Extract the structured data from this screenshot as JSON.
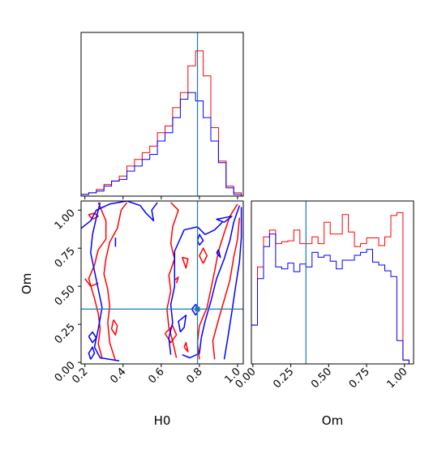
{
  "colors": {
    "red": "#ff0000",
    "blue": "#0000ff",
    "truth": "#1f77b4"
  },
  "labels": {
    "x_h0": "H0",
    "x_om": "Om",
    "y_om": "Om"
  },
  "chart_data": {
    "type": "corner",
    "parameters": [
      "H0",
      "Om"
    ],
    "truths": {
      "H0": 0.79,
      "Om": 0.35
    },
    "ranges": {
      "H0": [
        0.18,
        1.03
      ],
      "Om": [
        -0.01,
        1.06
      ]
    },
    "series": [
      {
        "color": "red"
      },
      {
        "color": "blue"
      }
    ],
    "hist_h0": {
      "x_ticks": [
        0.2,
        0.4,
        0.6,
        0.8,
        1.0
      ],
      "bin_edges": [
        0.18,
        0.22,
        0.26,
        0.3,
        0.34,
        0.38,
        0.42,
        0.46,
        0.5,
        0.54,
        0.58,
        0.62,
        0.66,
        0.7,
        0.74,
        0.78,
        0.82,
        0.86,
        0.9,
        0.94,
        0.98,
        1.02
      ],
      "red": [
        0.01,
        0.02,
        0.04,
        0.07,
        0.09,
        0.12,
        0.18,
        0.22,
        0.26,
        0.3,
        0.38,
        0.42,
        0.53,
        0.62,
        0.78,
        0.87,
        0.72,
        0.41,
        0.21,
        0.06,
        0.02
      ],
      "blue": [
        0.01,
        0.02,
        0.03,
        0.06,
        0.09,
        0.1,
        0.15,
        0.18,
        0.22,
        0.25,
        0.33,
        0.38,
        0.47,
        0.58,
        0.62,
        0.57,
        0.47,
        0.33,
        0.2,
        0.05,
        0.01
      ]
    },
    "hist_om": {
      "x_ticks": [
        0.0,
        0.25,
        0.5,
        0.75,
        1.0
      ],
      "x_tick_labels": [
        "0.00",
        "0.25",
        "0.50",
        "0.75",
        "1.00"
      ],
      "bin_edges": [
        -0.01,
        0.03,
        0.07,
        0.11,
        0.15,
        0.19,
        0.23,
        0.27,
        0.31,
        0.35,
        0.39,
        0.43,
        0.47,
        0.51,
        0.55,
        0.59,
        0.63,
        0.67,
        0.71,
        0.75,
        0.79,
        0.83,
        0.87,
        0.91,
        0.95,
        0.99,
        1.03
      ],
      "red": [
        0.4,
        1.0,
        1.31,
        1.38,
        1.24,
        1.26,
        1.27,
        1.38,
        1.24,
        1.24,
        1.31,
        1.24,
        1.46,
        1.34,
        1.34,
        1.54,
        1.36,
        1.21,
        1.24,
        1.3,
        1.3,
        1.22,
        1.31,
        1.53,
        1.56,
        0.04
      ],
      "blue": [
        0.4,
        0.88,
        1.21,
        1.34,
        1.0,
        0.98,
        1.04,
        0.95,
        1.03,
        1.0,
        1.15,
        1.1,
        1.12,
        1.06,
        0.98,
        1.07,
        1.07,
        1.12,
        1.15,
        1.18,
        1.05,
        1.02,
        0.96,
        0.9,
        0.24,
        0.04
      ]
    },
    "joint": {
      "x_ticks": [
        0.2,
        0.4,
        0.6,
        0.8,
        1.0
      ],
      "y_ticks": [
        0.0,
        0.25,
        0.5,
        0.75,
        1.0
      ],
      "y_tick_labels": [
        "0.00",
        "0.25",
        "0.50",
        "0.75",
        "1.00"
      ],
      "contours": [
        {
          "color": "red",
          "points": [
            [
              0.29,
              0.03
            ],
            [
              0.27,
              0.12
            ],
            [
              0.28,
              0.22
            ],
            [
              0.27,
              0.32
            ],
            [
              0.25,
              0.42
            ],
            [
              0.22,
              0.55
            ],
            [
              0.25,
              0.64
            ],
            [
              0.27,
              0.74
            ],
            [
              0.31,
              0.81
            ],
            [
              0.31,
              0.93
            ],
            [
              0.27,
              1.05
            ]
          ]
        },
        {
          "color": "red",
          "points": [
            [
              0.36,
              0.01
            ],
            [
              0.33,
              0.13
            ],
            [
              0.32,
              0.26
            ],
            [
              0.33,
              0.37
            ],
            [
              0.32,
              0.48
            ],
            [
              0.3,
              0.58
            ],
            [
              0.31,
              0.68
            ],
            [
              0.33,
              0.79
            ],
            [
              0.37,
              0.88
            ],
            [
              0.39,
              1.0
            ],
            [
              0.42,
              1.05
            ]
          ]
        },
        {
          "color": "red",
          "points": [
            [
              0.2,
              0.55
            ],
            [
              0.23,
              0.5
            ],
            [
              0.27,
              0.52
            ]
          ]
        },
        {
          "color": "red",
          "points": [
            [
              0.24,
              0.94
            ],
            [
              0.27,
              0.96
            ],
            [
              0.25,
              0.98
            ],
            [
              0.22,
              0.97
            ],
            [
              0.24,
              0.94
            ]
          ]
        },
        {
          "color": "red",
          "points": [
            [
              0.35,
              0.28
            ],
            [
              0.37,
              0.24
            ],
            [
              0.36,
              0.18
            ],
            [
              0.34,
              0.22
            ],
            [
              0.35,
              0.28
            ]
          ]
        },
        {
          "color": "red",
          "points": [
            [
              0.68,
              0.03
            ],
            [
              0.66,
              0.14
            ],
            [
              0.64,
              0.23
            ],
            [
              0.63,
              0.35
            ],
            [
              0.65,
              0.47
            ],
            [
              0.64,
              0.57
            ],
            [
              0.67,
              0.68
            ],
            [
              0.65,
              0.78
            ],
            [
              0.66,
              0.89
            ],
            [
              0.69,
              1.0
            ],
            [
              0.65,
              1.05
            ]
          ]
        },
        {
          "color": "red",
          "points": [
            [
              0.8,
              0.02
            ],
            [
              0.79,
              0.13
            ],
            [
              0.8,
              0.24
            ],
            [
              0.84,
              0.36
            ],
            [
              0.86,
              0.48
            ],
            [
              0.88,
              0.6
            ],
            [
              0.9,
              0.73
            ],
            [
              0.93,
              0.85
            ],
            [
              0.96,
              0.96
            ],
            [
              1.0,
              1.04
            ]
          ]
        },
        {
          "color": "red",
          "points": [
            [
              0.88,
              0.02
            ],
            [
              0.87,
              0.14
            ],
            [
              0.9,
              0.28
            ],
            [
              0.93,
              0.41
            ],
            [
              0.96,
              0.54
            ],
            [
              0.98,
              0.69
            ],
            [
              1.0,
              0.81
            ],
            [
              1.01,
              0.95
            ]
          ]
        },
        {
          "color": "red",
          "points": [
            [
              0.62,
              0.19
            ],
            [
              0.65,
              0.13
            ],
            [
              0.68,
              0.18
            ],
            [
              0.66,
              0.24
            ],
            [
              0.62,
              0.19
            ]
          ]
        },
        {
          "color": "red",
          "points": [
            [
              0.72,
              0.1
            ],
            [
              0.74,
              0.07
            ],
            [
              0.73,
              0.13
            ],
            [
              0.72,
              0.1
            ]
          ]
        },
        {
          "color": "red",
          "points": [
            [
              0.71,
              0.69
            ],
            [
              0.73,
              0.62
            ],
            [
              0.74,
              0.68
            ],
            [
              0.71,
              0.69
            ]
          ]
        },
        {
          "color": "red",
          "points": [
            [
              0.82,
              0.65
            ],
            [
              0.84,
              0.7
            ],
            [
              0.82,
              0.75
            ],
            [
              0.8,
              0.7
            ],
            [
              0.82,
              0.65
            ]
          ]
        },
        {
          "color": "red",
          "points": [
            [
              0.68,
              0.52
            ],
            [
              0.69,
              0.56
            ],
            [
              0.67,
              0.54
            ]
          ]
        },
        {
          "color": "blue",
          "points": [
            [
              0.18,
              0.88
            ],
            [
              0.23,
              0.93
            ],
            [
              0.26,
              1.0
            ],
            [
              0.33,
              1.04
            ],
            [
              0.42,
              1.06
            ],
            [
              0.49,
              1.03
            ],
            [
              0.52,
              0.98
            ],
            [
              0.56,
              0.93
            ],
            [
              0.55,
              1.0
            ],
            [
              0.58,
              1.05
            ]
          ]
        },
        {
          "color": "blue",
          "points": [
            [
              0.28,
              1.05
            ],
            [
              0.26,
              0.95
            ],
            [
              0.24,
              0.84
            ],
            [
              0.23,
              0.72
            ],
            [
              0.25,
              0.6
            ],
            [
              0.27,
              0.48
            ],
            [
              0.29,
              0.36
            ],
            [
              0.27,
              0.22
            ],
            [
              0.25,
              0.1
            ],
            [
              0.28,
              0.03
            ],
            [
              0.38,
              0.01
            ]
          ]
        },
        {
          "color": "blue",
          "points": [
            [
              0.65,
              0.05
            ],
            [
              0.64,
              0.16
            ],
            [
              0.66,
              0.26
            ],
            [
              0.65,
              0.38
            ],
            [
              0.67,
              0.5
            ],
            [
              0.67,
              0.62
            ],
            [
              0.67,
              0.73
            ],
            [
              0.72,
              0.87
            ],
            [
              0.79,
              0.89
            ],
            [
              0.83,
              0.84
            ],
            [
              0.88,
              0.87
            ],
            [
              0.92,
              0.92
            ]
          ]
        },
        {
          "color": "blue",
          "points": [
            [
              0.71,
              0.05
            ],
            [
              0.75,
              0.03
            ],
            [
              0.8,
              0.06
            ],
            [
              0.81,
              0.16
            ],
            [
              0.83,
              0.27
            ],
            [
              0.86,
              0.4
            ],
            [
              0.89,
              0.55
            ],
            [
              0.93,
              0.68
            ],
            [
              0.96,
              0.8
            ],
            [
              0.98,
              0.92
            ],
            [
              1.01,
              1.03
            ]
          ]
        },
        {
          "color": "blue",
          "points": [
            [
              0.93,
              0.02
            ],
            [
              0.95,
              0.17
            ],
            [
              0.97,
              0.33
            ],
            [
              0.99,
              0.5
            ],
            [
              1.01,
              0.66
            ],
            [
              1.02,
              0.82
            ],
            [
              1.02,
              1.02
            ]
          ]
        },
        {
          "color": "blue",
          "points": [
            [
              0.7,
              0.2
            ],
            [
              0.69,
              0.27
            ],
            [
              0.73,
              0.31
            ],
            [
              0.72,
              0.23
            ],
            [
              0.7,
              0.2
            ]
          ]
        },
        {
          "color": "blue",
          "points": [
            [
              0.78,
              0.31
            ],
            [
              0.8,
              0.35
            ],
            [
              0.78,
              0.38
            ],
            [
              0.76,
              0.35
            ],
            [
              0.78,
              0.31
            ]
          ]
        },
        {
          "color": "blue",
          "points": [
            [
              0.8,
              0.77
            ],
            [
              0.82,
              0.8
            ],
            [
              0.8,
              0.84
            ],
            [
              0.79,
              0.8
            ],
            [
              0.8,
              0.77
            ]
          ]
        },
        {
          "color": "blue",
          "points": [
            [
              0.22,
              0.17
            ],
            [
              0.24,
              0.13
            ],
            [
              0.26,
              0.16
            ],
            [
              0.24,
              0.2
            ],
            [
              0.22,
              0.17
            ]
          ]
        },
        {
          "color": "blue",
          "points": [
            [
              0.23,
              0.02
            ],
            [
              0.25,
              0.06
            ],
            [
              0.24,
              0.1
            ],
            [
              0.22,
              0.06
            ],
            [
              0.23,
              0.02
            ]
          ]
        },
        {
          "color": "blue",
          "points": [
            [
              0.36,
              0.76
            ],
            [
              0.36,
              0.82
            ]
          ]
        },
        {
          "color": "blue",
          "points": [
            [
              0.93,
              0.92
            ],
            [
              0.97,
              0.96
            ],
            [
              0.93,
              0.95
            ],
            [
              0.89,
              0.94
            ],
            [
              0.93,
              0.92
            ]
          ]
        },
        {
          "color": "blue",
          "points": [
            [
              0.89,
              0.72
            ],
            [
              0.91,
              0.69
            ],
            [
              0.9,
              0.74
            ],
            [
              0.89,
              0.72
            ]
          ]
        }
      ]
    }
  }
}
